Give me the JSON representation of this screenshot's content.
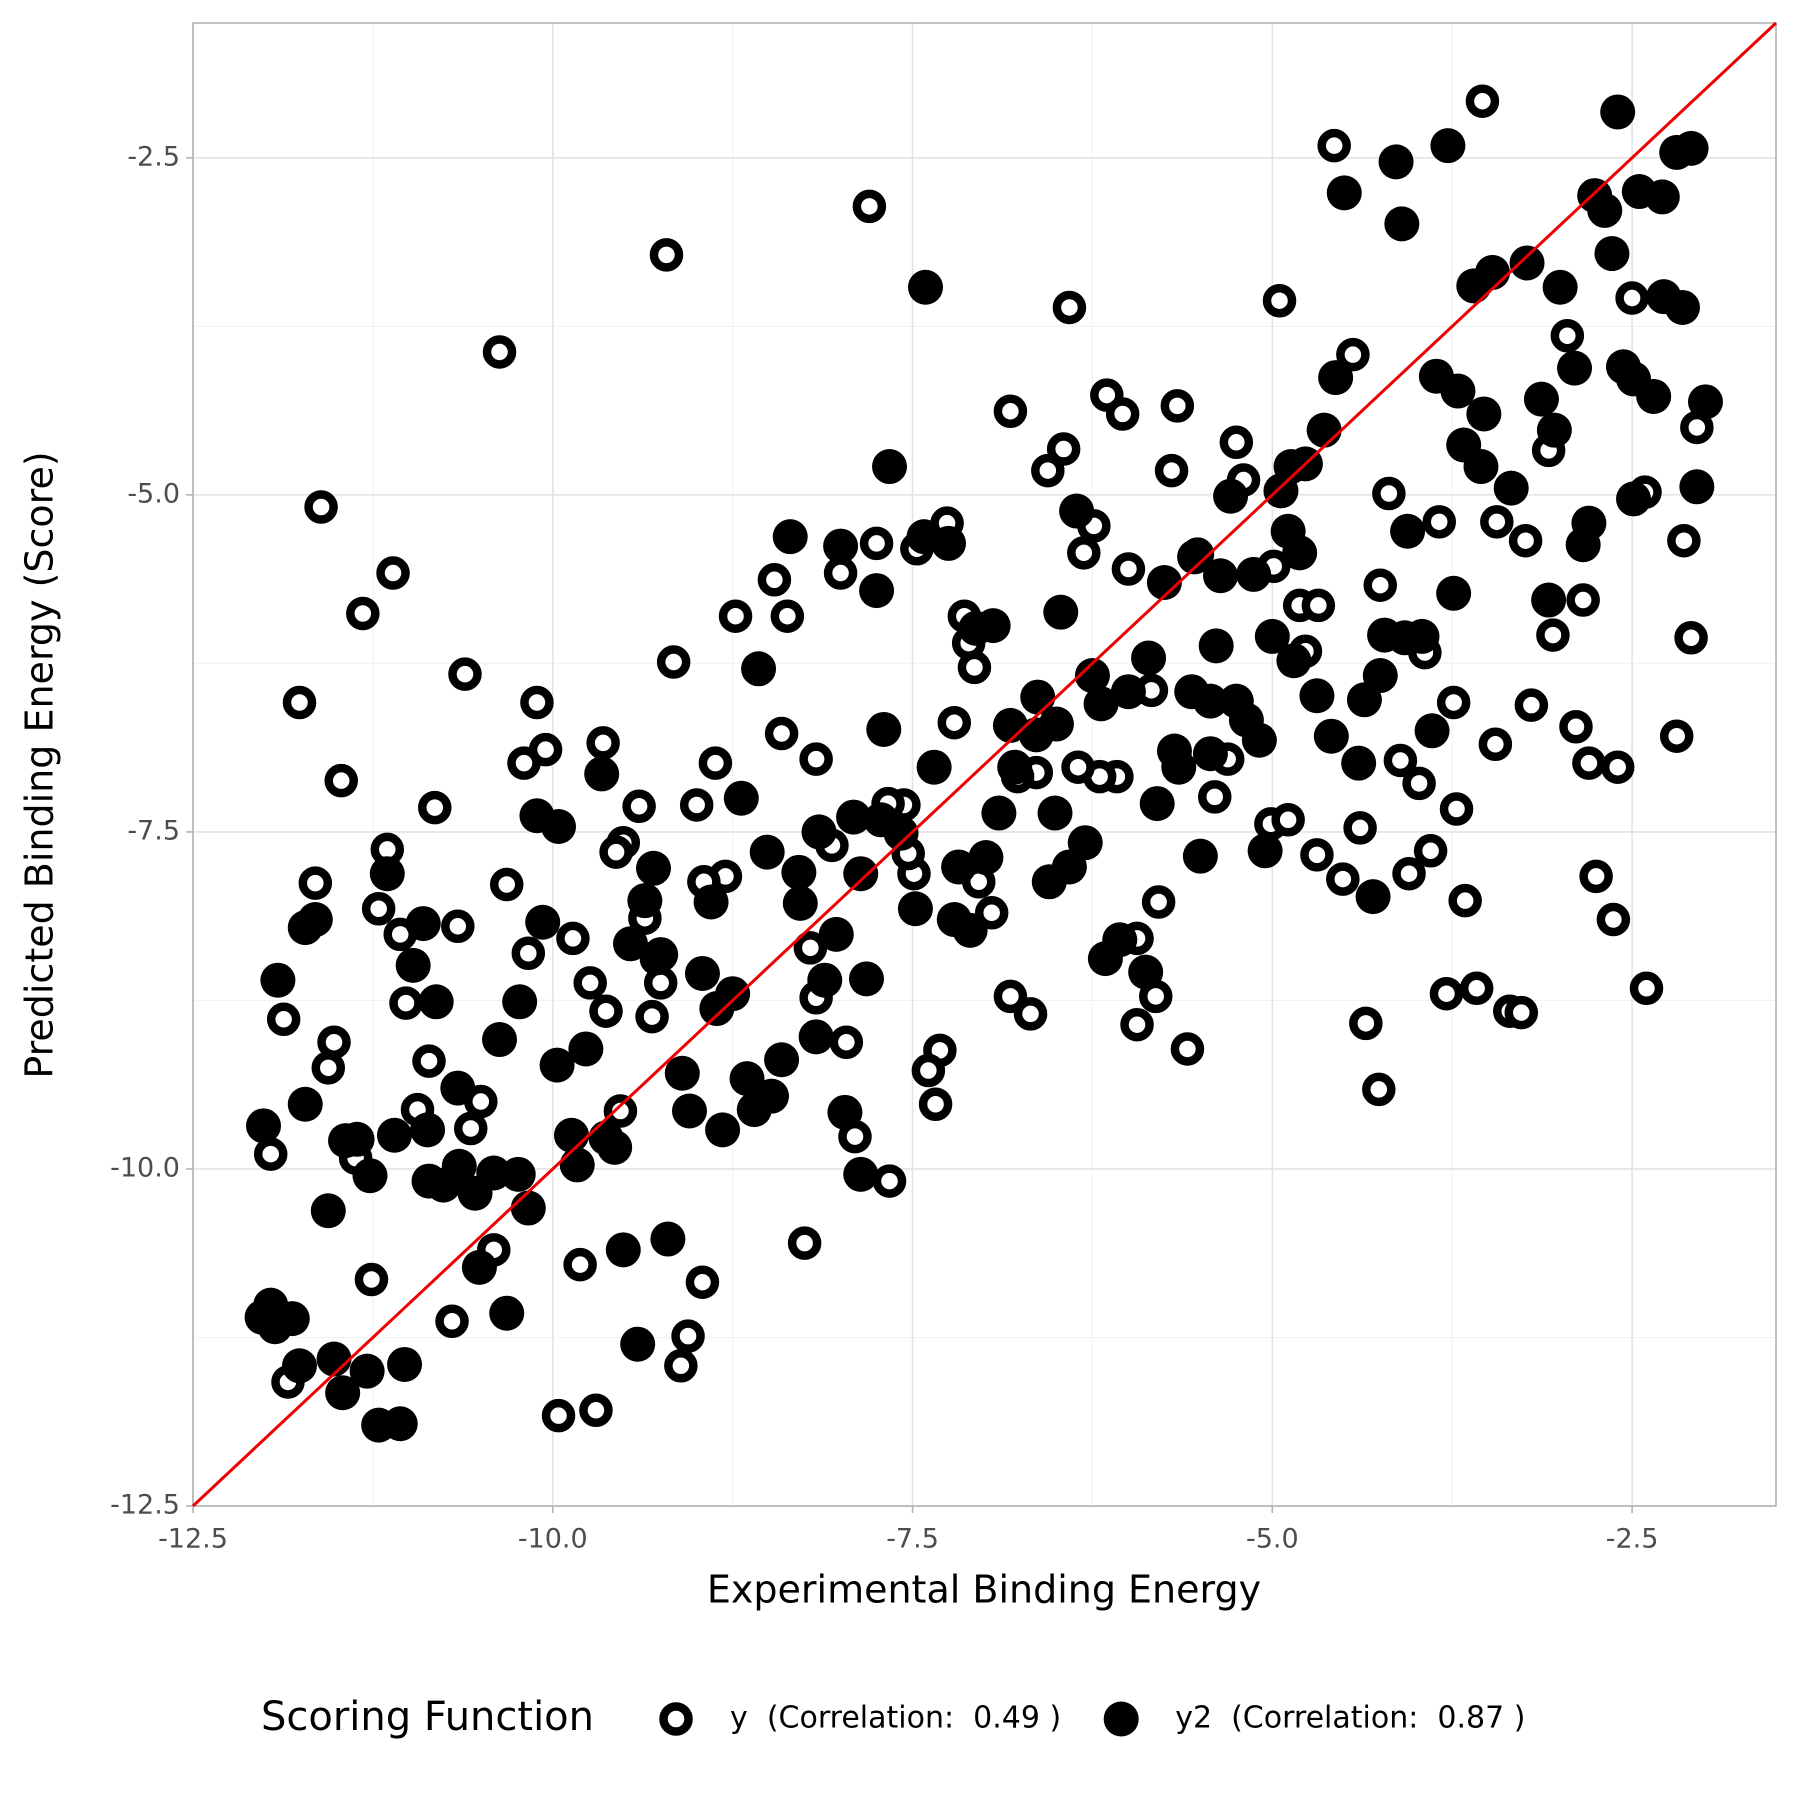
{
  "chart_data": {
    "type": "scatter",
    "x_label": "Experimental Binding Energy",
    "y_label": "Predicted Binding Energy (Score)",
    "legend_title": "Scoring Function",
    "legend_position": "bottom",
    "xlim": [
      -12.5,
      -1.5
    ],
    "ylim": [
      -12.5,
      -1.5
    ],
    "xticks": [
      -12.5,
      {
        "value": -10,
        "label": "-10.0"
      },
      -7.5,
      {
        "value": -5,
        "label": "-5.0"
      },
      -2.5
    ],
    "yticks": [
      -12.5,
      {
        "value": -10,
        "label": "-10.0"
      },
      -7.5,
      {
        "value": -5,
        "label": "-5.0"
      },
      -2.5
    ],
    "grid": true,
    "minor_grid": true,
    "identity_line": true,
    "identity_line_color": "#ee0000",
    "series": [
      {
        "name": "y  (Correlation:  0.49 )",
        "marker": "ring",
        "color": "#000000",
        "x": [
          -3.54,
          -7.8,
          -9.21,
          -10.37,
          -6.41,
          -4.95,
          -4.57,
          -4.44,
          -6.15,
          -6.04,
          -6.82,
          -5.66,
          -6.45,
          -6.56,
          -5.25,
          -5.2,
          -5.7,
          -11.61,
          -11.11,
          -11.32,
          -11.76,
          -11.47,
          -10.61,
          -9.16,
          -10.11,
          -10.05,
          -10.2,
          -10.82,
          -9.65,
          -9.4,
          -9.0,
          -8.87,
          -8.17,
          -8.41,
          -8.46,
          -8.37,
          -8.73,
          -8.0,
          -7.75,
          -7.47,
          -7.26,
          -7.14,
          -7.11,
          -7.07,
          -7.21,
          -6.31,
          -6.24,
          -6.0,
          -5.52,
          -5.75,
          -4.99,
          -4.81,
          -4.68,
          -4.77,
          -4.25,
          -4.19,
          -3.84,
          -3.74,
          -3.94,
          -3.44,
          -3.24,
          -3.08,
          -3.05,
          -2.84,
          -2.41,
          -2.14,
          -2.09,
          -2.05,
          -2.95,
          -2.5,
          -2.19,
          -2.6,
          -2.8,
          -2.89,
          -3.2,
          -3.45,
          -3.72,
          -3.98,
          -4.11,
          -4.39,
          -4.05,
          -3.9,
          -3.66,
          -4.51,
          -4.69,
          -5.01,
          -4.89,
          -5.4,
          -5.31,
          -5.84,
          -6.08,
          -6.2,
          -6.35,
          -6.64,
          -6.77,
          -6.82,
          -6.68,
          -7.31,
          -7.34,
          -7.39,
          -7.49,
          -7.53,
          -7.56,
          -7.67,
          -7.86,
          -7.9,
          -7.66,
          -7.96,
          -8.06,
          -8.17,
          -8.21,
          -8.25,
          -8.8,
          -8.95,
          -8.96,
          -9.06,
          -9.11,
          -9.31,
          -9.25,
          -9.28,
          -9.36,
          -9.63,
          -9.74,
          -9.86,
          -9.7,
          -9.96,
          -9.81,
          -10.41,
          -10.7,
          -11.26,
          -11.84,
          -11.96,
          -11.87,
          -11.56,
          -11.52,
          -11.65,
          -11.15,
          -11.21,
          -11.06,
          -11.02,
          -10.86,
          -10.66,
          -10.32,
          -10.17,
          -10.57,
          -10.5,
          -10.94,
          -11.37,
          -4.26,
          -4.35,
          -3.79,
          -3.58,
          -3.35,
          -3.27,
          -2.4,
          -2.63,
          -2.75,
          -5.59,
          -5.94,
          -5.81,
          -5.79,
          -5.94,
          -9.51,
          -9.56,
          -7.04,
          -6.95,
          -9.53
        ],
        "values": [
          -2.08,
          -2.86,
          -3.22,
          -3.94,
          -3.61,
          -3.56,
          -2.41,
          -3.96,
          -4.26,
          -4.4,
          -4.38,
          -4.34,
          -4.66,
          -4.82,
          -4.61,
          -4.89,
          -4.82,
          -5.09,
          -5.58,
          -5.88,
          -6.54,
          -7.12,
          -6.33,
          -6.24,
          -6.54,
          -6.89,
          -6.99,
          -7.32,
          -6.84,
          -7.31,
          -7.3,
          -6.99,
          -6.96,
          -6.77,
          -5.63,
          -5.9,
          -5.9,
          -5.58,
          -5.36,
          -5.4,
          -5.21,
          -5.9,
          -6.1,
          -6.28,
          -6.69,
          -5.43,
          -5.23,
          -5.55,
          -5.44,
          -5.65,
          -5.53,
          -5.82,
          -5.82,
          -6.16,
          -5.67,
          -4.99,
          -5.2,
          -6.54,
          -6.17,
          -5.2,
          -5.34,
          -4.67,
          -6.04,
          -5.78,
          -4.98,
          -5.34,
          -6.06,
          -4.5,
          -3.82,
          -3.54,
          -6.79,
          -7.02,
          -6.99,
          -6.72,
          -6.56,
          -6.85,
          -7.33,
          -7.14,
          -6.97,
          -7.47,
          -7.81,
          -7.64,
          -8.01,
          -7.85,
          -7.67,
          -7.44,
          -7.41,
          -7.24,
          -6.96,
          -6.45,
          -7.09,
          -7.09,
          -7.02,
          -7.06,
          -7.09,
          -8.72,
          -8.85,
          -9.12,
          -9.52,
          -9.27,
          -7.81,
          -7.66,
          -7.3,
          -7.29,
          -7.81,
          -9.76,
          -10.09,
          -9.06,
          -7.6,
          -8.73,
          -8.36,
          -10.55,
          -7.83,
          -7.87,
          -10.84,
          -11.24,
          -11.46,
          -8.87,
          -8.62,
          -8.44,
          -8.14,
          -8.83,
          -8.62,
          -8.29,
          -11.79,
          -11.83,
          -10.71,
          -10.6,
          -11.13,
          -10.82,
          -11.58,
          -9.89,
          -8.89,
          -9.25,
          -9.06,
          -7.88,
          -7.63,
          -8.07,
          -8.26,
          -8.77,
          -9.2,
          -8.2,
          -7.89,
          -8.4,
          -9.7,
          -9.5,
          -9.56,
          -9.92,
          -9.41,
          -8.92,
          -8.7,
          -8.66,
          -8.83,
          -8.84,
          -8.66,
          -8.15,
          -7.83,
          -9.11,
          -8.93,
          -8.72,
          -8.02,
          -8.29,
          -7.58,
          -7.65,
          -7.87,
          -8.1,
          -9.57
        ]
      },
      {
        "name": "y2  (Correlation:  0.87 )",
        "marker": "filled",
        "color": "#000000",
        "x": [
          -2.6,
          -3.78,
          -4.14,
          -4.5,
          -4.1,
          -2.19,
          -2.09,
          -2.45,
          -2.29,
          -2.76,
          -2.69,
          -2.64,
          -3.23,
          -3.47,
          -3.6,
          -3.0,
          -2.28,
          -2.15,
          -2.56,
          -2.49,
          -2.35,
          -1.99,
          -2.05,
          -2.9,
          -3.13,
          -3.04,
          -3.53,
          -3.67,
          -3.55,
          -3.34,
          -3.86,
          -3.71,
          -4.56,
          -4.64,
          -4.77,
          -4.87,
          -5.29,
          -4.94,
          -4.89,
          -4.81,
          -5.36,
          -5.13,
          -5.0,
          -4.85,
          -4.69,
          -4.36,
          -4.25,
          -4.22,
          -4.08,
          -3.96,
          -4.06,
          -3.74,
          -3.89,
          -4.59,
          -4.4,
          -4.3,
          -2.8,
          -2.84,
          -3.08,
          -2.49,
          -7.41,
          -7.66,
          -8.35,
          -8.0,
          -7.75,
          -7.42,
          -7.25,
          -8.57,
          -7.7,
          -7.35,
          -7.06,
          -6.94,
          -6.63,
          -6.82,
          -6.64,
          -6.5,
          -6.36,
          -6.47,
          -6.25,
          -6.19,
          -6.0,
          -5.86,
          -5.75,
          -5.54,
          -5.56,
          -5.43,
          -5.39,
          -5.25,
          -5.18,
          -5.09,
          -5.68,
          -5.65,
          -5.43,
          -5.8,
          -5.5,
          -5.05,
          -6.16,
          -6.06,
          -5.88,
          -6.51,
          -6.41,
          -6.3,
          -6.55,
          -6.9,
          -6.79,
          -6.99,
          -7.18,
          -7.21,
          -7.1,
          -7.48,
          -7.58,
          -7.72,
          -7.91,
          -8.15,
          -7.86,
          -7.82,
          -8.03,
          -8.11,
          -8.17,
          -7.97,
          -7.86,
          -8.51,
          -8.29,
          -8.28,
          -8.69,
          -8.9,
          -8.96,
          -8.86,
          -8.75,
          -8.82,
          -8.65,
          -8.48,
          -8.41,
          -8.6,
          -9.05,
          -9.1,
          -9.2,
          -9.41,
          -9.51,
          -9.66,
          -9.3,
          -9.36,
          -9.46,
          -9.25,
          -9.57,
          -9.63,
          -9.77,
          -9.83,
          -9.87,
          -9.97,
          -10.07,
          -9.96,
          -10.11,
          -10.23,
          -10.37,
          -10.17,
          -10.32,
          -10.51,
          -10.24,
          -10.41,
          -10.54,
          -10.65,
          -10.76,
          -10.86,
          -10.66,
          -10.81,
          -10.97,
          -10.9,
          -11.15,
          -11.03,
          -11.21,
          -11.06,
          -11.46,
          -11.29,
          -11.52,
          -11.76,
          -11.81,
          -11.96,
          -12.02,
          -11.93,
          -11.56,
          -11.27,
          -11.36,
          -11.44,
          -11.1,
          -10.87,
          -11.72,
          -12.01,
          -11.91,
          -11.72,
          -11.65
        ],
        "values": [
          -2.16,
          -2.41,
          -2.53,
          -2.76,
          -2.99,
          -2.46,
          -2.43,
          -2.75,
          -2.79,
          -2.78,
          -2.89,
          -3.21,
          -3.28,
          -3.35,
          -3.45,
          -3.46,
          -3.53,
          -3.61,
          -4.05,
          -4.14,
          -4.27,
          -4.31,
          -4.94,
          -4.06,
          -4.29,
          -4.52,
          -4.4,
          -4.63,
          -4.79,
          -4.95,
          -4.12,
          -4.23,
          -4.13,
          -4.52,
          -4.77,
          -4.79,
          -5.01,
          -4.97,
          -5.27,
          -5.43,
          -5.6,
          -5.59,
          -6.05,
          -6.23,
          -6.49,
          -6.52,
          -6.34,
          -6.04,
          -6.06,
          -6.05,
          -5.27,
          -5.73,
          -6.75,
          -6.79,
          -6.99,
          -7.98,
          -5.21,
          -5.37,
          -5.78,
          -5.03,
          -3.46,
          -4.79,
          -5.31,
          -5.38,
          -5.71,
          -5.31,
          -5.36,
          -6.29,
          -6.74,
          -7.02,
          -5.99,
          -5.97,
          -6.5,
          -6.71,
          -6.78,
          -6.7,
          -5.12,
          -5.87,
          -6.34,
          -6.55,
          -6.46,
          -6.21,
          -5.65,
          -5.46,
          -6.46,
          -6.53,
          -6.12,
          -6.53,
          -6.67,
          -6.82,
          -6.9,
          -7.02,
          -6.92,
          -7.29,
          -7.68,
          -7.64,
          -8.44,
          -8.3,
          -8.54,
          -7.36,
          -7.76,
          -7.58,
          -7.87,
          -7.36,
          -7.02,
          -7.69,
          -7.76,
          -8.15,
          -8.23,
          -8.07,
          -7.51,
          -7.41,
          -7.39,
          -7.5,
          -7.81,
          -8.59,
          -8.26,
          -8.6,
          -9.02,
          -9.58,
          -10.04,
          -7.65,
          -7.8,
          -8.03,
          -7.25,
          -8.02,
          -8.55,
          -8.81,
          -8.7,
          -9.71,
          -9.33,
          -9.46,
          -9.19,
          -9.56,
          -9.57,
          -9.29,
          -10.52,
          -11.3,
          -10.6,
          -7.07,
          -7.77,
          -8.01,
          -8.33,
          -8.41,
          -9.84,
          -9.77,
          -9.11,
          -9.97,
          -9.75,
          -9.23,
          -8.17,
          -7.46,
          -7.38,
          -8.76,
          -9.04,
          -10.29,
          -11.07,
          -10.73,
          -10.04,
          -10.03,
          -10.18,
          -9.98,
          -10.12,
          -10.09,
          -9.4,
          -8.76,
          -8.49,
          -8.18,
          -7.81,
          -11.45,
          -11.9,
          -11.89,
          -11.66,
          -11.5,
          -11.41,
          -11.46,
          -11.11,
          -11.01,
          -11.1,
          -11.17,
          -10.31,
          -10.05,
          -9.78,
          -9.79,
          -9.75,
          -9.71,
          -9.52,
          -9.68,
          -8.6,
          -8.21,
          -8.15
        ]
      }
    ]
  }
}
